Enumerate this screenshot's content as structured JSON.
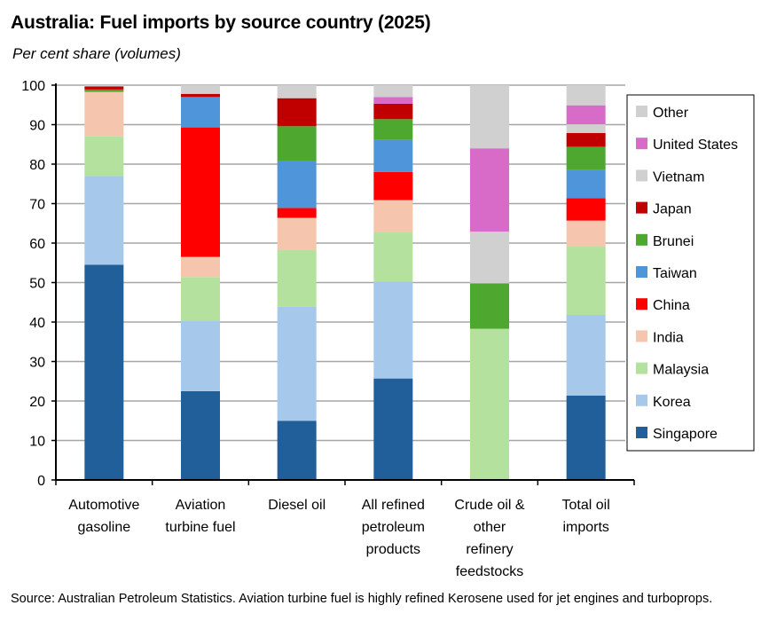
{
  "chart_data": {
    "type": "bar",
    "stacked": true,
    "title": "Australia: Fuel imports by source country (2025)",
    "subtitle": "Per cent share (volumes)",
    "xlabel": "",
    "ylabel": "",
    "ylim": [
      0,
      100
    ],
    "yticks": [
      0,
      10,
      20,
      30,
      40,
      50,
      60,
      70,
      80,
      90,
      100
    ],
    "grid": true,
    "legend_position": "right",
    "categories": [
      [
        "Automotive",
        "gasoline"
      ],
      [
        "Aviation",
        "turbine fuel"
      ],
      [
        "Diesel oil"
      ],
      [
        "All refined",
        "petroleum",
        "products"
      ],
      [
        "Crude oil &",
        "other",
        "refinery",
        "feedstocks"
      ],
      [
        "Total oil",
        "imports"
      ]
    ],
    "series": [
      {
        "name": "Singapore",
        "color": "#215f9a",
        "values": [
          54.5,
          22.5,
          15.0,
          25.7,
          0,
          21.4
        ]
      },
      {
        "name": "Korea",
        "color": "#a6c8ea",
        "values": [
          22.5,
          17.9,
          28.9,
          24.5,
          0,
          20.4
        ]
      },
      {
        "name": "Malaysia",
        "color": "#b4e29e",
        "values": [
          10.0,
          11.0,
          14.4,
          12.6,
          38.3,
          17.3
        ]
      },
      {
        "name": "India",
        "color": "#f5c6ad",
        "values": [
          11.3,
          5.1,
          8.1,
          8.1,
          0,
          6.6
        ]
      },
      {
        "name": "China",
        "color": "#ff0000",
        "values": [
          0,
          32.8,
          2.5,
          7.1,
          0,
          5.7
        ]
      },
      {
        "name": "Taiwan",
        "color": "#4e95d9",
        "values": [
          0,
          7.7,
          12.0,
          8.1,
          0,
          7.1
        ]
      },
      {
        "name": "Brunei",
        "color": "#4ea72e",
        "values": [
          0.6,
          0,
          8.7,
          5.3,
          11.5,
          5.9
        ]
      },
      {
        "name": "Japan",
        "color": "#c00000",
        "values": [
          0.8,
          0.8,
          7.1,
          3.9,
          0,
          3.5
        ]
      },
      {
        "name": "Vietnam",
        "color": "#d0d0d0",
        "values": [
          0,
          0,
          0,
          0,
          13.1,
          2.2
        ]
      },
      {
        "name": "United States",
        "color": "#d86ac8",
        "values": [
          0,
          0,
          0,
          1.7,
          21.1,
          4.8
        ]
      },
      {
        "name": "Other",
        "color": "#d0d0d0",
        "values": [
          0.3,
          2.2,
          3.3,
          3.0,
          16.0,
          5.1
        ]
      }
    ]
  },
  "source": "Source: Australian Petroleum Statistics. Aviation turbine fuel is highly refined Kerosene used for jet engines and turboprops."
}
